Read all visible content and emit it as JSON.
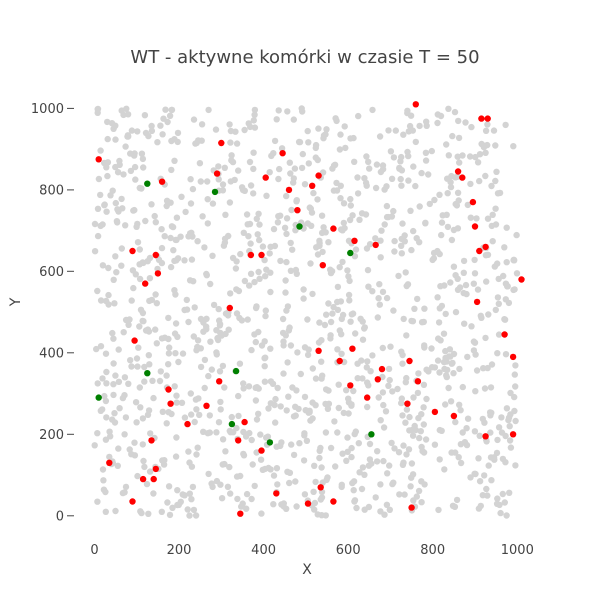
{
  "chart_data": {
    "type": "scatter",
    "title": "WT - aktywne komórki w czasie T = 50",
    "xlabel": "X",
    "ylabel": "Y",
    "xlim": [
      -20,
      1030
    ],
    "ylim": [
      -30,
      1050
    ],
    "xticks": [
      0,
      200,
      400,
      600,
      800,
      1000
    ],
    "yticks": [
      0,
      200,
      400,
      600,
      800,
      1000
    ],
    "grid": false,
    "colors": {
      "inactive": "#d3d3d3",
      "red": "#ff0000",
      "green": "#008000"
    },
    "background_points": {
      "count": 1300,
      "seed": 7,
      "range": [
        0,
        1000
      ]
    },
    "series": [
      {
        "color": "red",
        "x": [
          760,
          915,
          930,
          10,
          300,
          290,
          405,
          445,
          530,
          515,
          460,
          480,
          565,
          860,
          870,
          895,
          900,
          910,
          925,
          1010,
          90,
          160,
          145,
          370,
          395,
          540,
          615,
          665,
          120,
          150,
          905,
          320,
          970,
          990,
          95,
          530,
          580,
          610,
          605,
          645,
          670,
          680,
          745,
          765,
          175,
          295,
          180,
          355,
          265,
          805,
          850,
          740,
          220,
          340,
          990,
          925,
          135,
          395,
          35,
          145,
          140,
          115,
          90,
          430,
          345,
          535,
          505,
          565,
          750
        ],
        "y": [
          1010,
          975,
          975,
          875,
          915,
          840,
          830,
          890,
          835,
          810,
          800,
          750,
          705,
          845,
          830,
          770,
          710,
          650,
          660,
          580,
          650,
          820,
          640,
          640,
          640,
          615,
          675,
          665,
          570,
          595,
          525,
          510,
          445,
          390,
          430,
          405,
          380,
          410,
          320,
          290,
          335,
          360,
          380,
          330,
          310,
          330,
          275,
          230,
          270,
          255,
          245,
          275,
          225,
          185,
          200,
          195,
          185,
          160,
          130,
          115,
          90,
          90,
          35,
          55,
          5,
          70,
          30,
          35,
          20
        ]
      },
      {
        "color": "green",
        "x": [
          125,
          285,
          485,
          605,
          10,
          125,
          335,
          325,
          415,
          655
        ],
        "y": [
          815,
          795,
          710,
          645,
          290,
          350,
          355,
          225,
          180,
          200
        ]
      }
    ]
  }
}
